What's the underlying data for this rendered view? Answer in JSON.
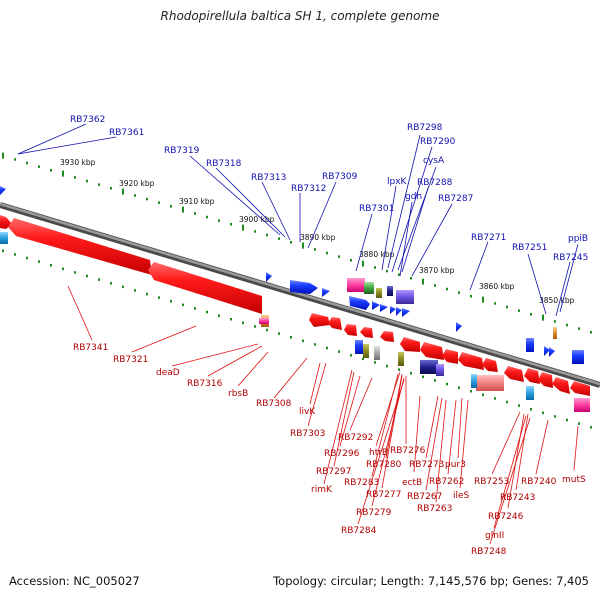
{
  "header": {
    "title": "Rhodopirellula baltica SH 1, complete genome"
  },
  "footer": {
    "accession": "Accession: NC_005027",
    "topology": "Topology: circular; Length: 7,145,576 bp; Genes: 7,405"
  },
  "colors": {
    "backbone": "#7f7f7f",
    "tick": "#1f8a1f",
    "forward_label": "#1010b0",
    "reverse_label": "#b00000",
    "forward_gene": "#1f3dff",
    "reverse_gene": "#ff1010"
  },
  "ticks": [
    "3930 kbp",
    "3920 kbp",
    "3910 kbp",
    "3900 kbp",
    "3890 kbp",
    "3880 kbp",
    "3870 kbp",
    "3860 kbp",
    "3850 kbp"
  ],
  "forward_labels": [
    "RB7362",
    "RB7361",
    "RB7319",
    "RB7318",
    "RB7313",
    "RB7312",
    "RB7309",
    "RB7301",
    "lpxK",
    "RB7298",
    "RB7290",
    "cysA",
    "gdh",
    "RB7288",
    "RB7287",
    "RB7271",
    "RB7251",
    "ppiB",
    "RB7245"
  ],
  "reverse_labels": [
    "RB7341",
    "RB7321",
    "deaD",
    "RB7316",
    "rbsB",
    "RB7308",
    "livK",
    "RB7303",
    "RB7292",
    "RB7296",
    "RB7297",
    "rimK",
    "htrB",
    "RB7280",
    "RB7276",
    "RB7283",
    "RB7277",
    "RB7279",
    "RB7284",
    "ectB",
    "RB7273",
    "RB7267",
    "RB7263",
    "pur3",
    "RB7262",
    "ileS",
    "RB7253",
    "RB7243",
    "RB7246",
    "glnII",
    "RB7248",
    "RB7240",
    "mutS"
  ]
}
